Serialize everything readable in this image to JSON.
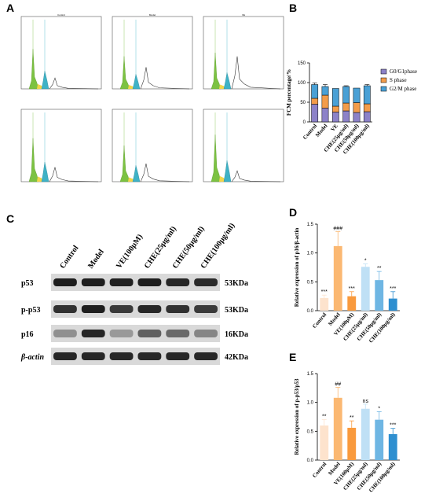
{
  "panels": {
    "a": "A",
    "b": "B",
    "c": "C",
    "d": "D",
    "e": "E"
  },
  "flow": {
    "plots": [
      {
        "title": "Control",
        "peak": 0.55,
        "tail": 0.15
      },
      {
        "title": "Model",
        "peak": 0.45,
        "tail": 0.3
      },
      {
        "title": "VE",
        "peak": 0.5,
        "tail": 0.45
      },
      {
        "title": "",
        "peak": 0.6,
        "tail": 0.2
      },
      {
        "title": "",
        "peak": 0.5,
        "tail": 0.25
      },
      {
        "title": "",
        "peak": 0.65,
        "tail": 0.15
      }
    ]
  },
  "blot": {
    "lanes": [
      "Control",
      "Model",
      "VE(100μM)",
      "CHE(25μg/ml)",
      "CHE(50μg/ml)",
      "CHE(100μg/ml)"
    ],
    "rows": [
      {
        "protein": "p53",
        "kda": "53KDa",
        "intensity": [
          0.95,
          0.95,
          0.93,
          0.95,
          0.9,
          0.88
        ]
      },
      {
        "protein": "p-p53",
        "kda": "53KDa",
        "intensity": [
          0.85,
          0.95,
          0.8,
          0.9,
          0.85,
          0.8
        ]
      },
      {
        "protein": "p16",
        "kda": "16KDa",
        "intensity": [
          0.35,
          0.9,
          0.3,
          0.6,
          0.55,
          0.4
        ]
      },
      {
        "protein": "β-actin",
        "kda": "42KDa",
        "intensity": [
          0.9,
          0.9,
          0.9,
          0.9,
          0.9,
          0.9
        ]
      }
    ]
  },
  "chart_data": [
    {
      "type": "bar",
      "stacked": true,
      "categories": [
        "Control",
        "Model",
        "VE",
        "CHE(25μg/ml)",
        "CHE(50μg/ml)",
        "CHE(100μg/ml)"
      ],
      "series": [
        {
          "name": "G0/G1phase",
          "values": [
            45,
            35,
            25,
            28,
            24,
            26
          ],
          "color": "#8c82c8"
        },
        {
          "name": "S phase",
          "values": [
            15,
            33,
            15,
            20,
            25,
            20
          ],
          "color": "#f39c4a"
        },
        {
          "name": "G2/M phase",
          "values": [
            35,
            22,
            45,
            42,
            37,
            46
          ],
          "color": "#4aa0d5"
        }
      ],
      "errors": [
        4,
        5,
        0,
        2,
        0,
        3
      ],
      "ylabel": "FCM percentage/%",
      "ylim": [
        0,
        150
      ],
      "yticks": [
        0,
        50,
        100,
        150
      ],
      "legend": "right"
    },
    {
      "type": "bar",
      "categories": [
        "Control",
        "Model",
        "VE(100μM)",
        "CHE(25μg/ml)",
        "CHE(50μg/ml)",
        "CHE(100μg/ml)"
      ],
      "values": [
        0.22,
        1.12,
        0.25,
        0.76,
        0.53,
        0.21
      ],
      "errors": [
        0.05,
        0.25,
        0.08,
        0.05,
        0.15,
        0.12
      ],
      "significance": [
        "***",
        "###",
        "***",
        "*",
        "**",
        "***"
      ],
      "colors": [
        "#fde3cd",
        "#fbb872",
        "#f99a3d",
        "#bfe0f5",
        "#6fb6e3",
        "#2e8fd0"
      ],
      "ylabel": "Relative expression of p16/β-actin",
      "ylim": [
        0,
        1.5
      ],
      "yticks": [
        0.0,
        0.5,
        1.0,
        1.5
      ]
    },
    {
      "type": "bar",
      "categories": [
        "Control",
        "Model",
        "VE(100μM)",
        "CHE(25μg/ml)",
        "CHE(50μg/ml)",
        "CHE(100μg/ml)"
      ],
      "values": [
        0.6,
        1.08,
        0.56,
        0.89,
        0.7,
        0.45
      ],
      "errors": [
        0.1,
        0.18,
        0.12,
        0.08,
        0.14,
        0.1
      ],
      "significance": [
        "**",
        "##",
        "**",
        "ns",
        "*",
        "***"
      ],
      "colors": [
        "#fde3cd",
        "#fbb872",
        "#f99a3d",
        "#bfe0f5",
        "#6fb6e3",
        "#2e8fd0"
      ],
      "ylabel": "Relative expression of p-p53/p53",
      "ylim": [
        0,
        1.5
      ],
      "yticks": [
        0.0,
        0.5,
        1.0,
        1.5
      ]
    }
  ]
}
